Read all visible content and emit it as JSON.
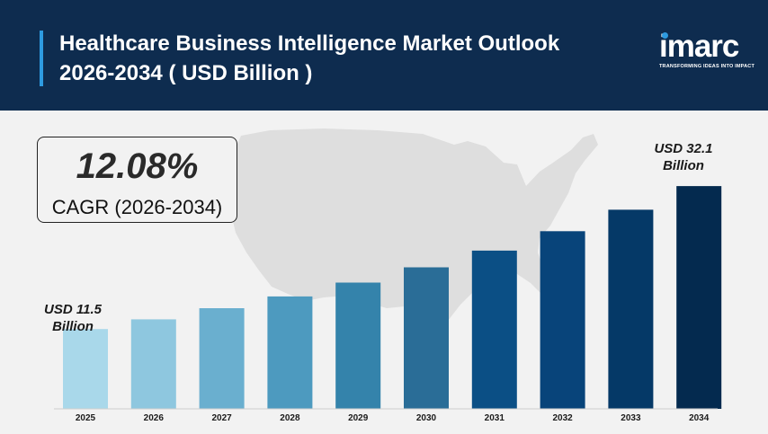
{
  "header": {
    "title_line1": "Healthcare Business Intelligence Market Outlook",
    "title_line2": "2026-2034 ( USD Billion )"
  },
  "logo": {
    "name": "imarc",
    "tagline": "TRANSFORMING IDEAS INTO IMPACT"
  },
  "cagr": {
    "value": "12.08%",
    "label": "CAGR (2026-2034)"
  },
  "callouts": {
    "start_line1": "USD 11.5",
    "start_line2": "Billion",
    "end_line1": "USD 32.1",
    "end_line2": "Billion"
  },
  "colors": {
    "header_bg": "#0e2c4f",
    "accent": "#2e9be0",
    "map": "#dedede"
  },
  "chart_data": {
    "type": "bar",
    "title": "Healthcare Business Intelligence Market Outlook 2026-2034 ( USD Billion )",
    "categories": [
      "2025",
      "2026",
      "2027",
      "2028",
      "2029",
      "2030",
      "2031",
      "2032",
      "2033",
      "2034"
    ],
    "values": [
      11.5,
      12.9,
      14.5,
      16.2,
      18.2,
      20.4,
      22.8,
      25.6,
      28.7,
      32.1
    ],
    "colors": [
      "#a9d8ea",
      "#8ec7df",
      "#6aafcf",
      "#4d9abf",
      "#3483ab",
      "#2a6d97",
      "#0b4f85",
      "#08447a",
      "#053967",
      "#042a4f"
    ],
    "ylim": [
      0,
      36
    ],
    "grid": false,
    "legend": "none"
  }
}
